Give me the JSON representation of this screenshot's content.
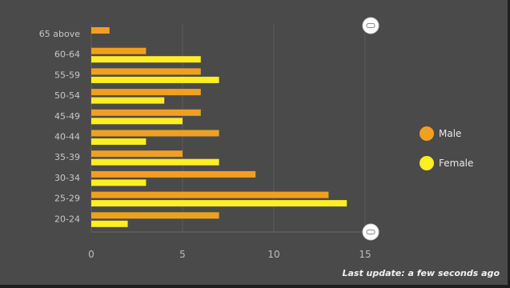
{
  "chart_data": {
    "type": "bar",
    "orientation": "horizontal",
    "categories": [
      "65 above",
      "60-64",
      "55-59",
      "50-54",
      "45-49",
      "40-44",
      "35-39",
      "30-34",
      "25-29",
      "20-24"
    ],
    "series": [
      {
        "name": "Male",
        "color": "#f0a020",
        "values": [
          1,
          3,
          6,
          6,
          6,
          7,
          5,
          9,
          13,
          7
        ]
      },
      {
        "name": "Female",
        "color": "#ffee22",
        "values": [
          0,
          6,
          7,
          4,
          5,
          3,
          7,
          3,
          14,
          2
        ]
      }
    ],
    "xlim": [
      0,
      15
    ],
    "xticks": [
      "0",
      "5",
      "10",
      "15"
    ],
    "grid": true,
    "legend_position": "right"
  },
  "footer": {
    "last_update": "Last update: a few seconds ago"
  },
  "slider": {
    "top_handle_icon": "drag-handle-icon",
    "bottom_handle_icon": "drag-handle-icon"
  }
}
